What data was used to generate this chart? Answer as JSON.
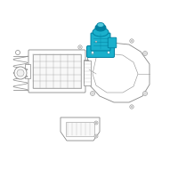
{
  "background_color": "#ffffff",
  "fig_width": 2.0,
  "fig_height": 2.0,
  "dpi": 100,
  "highlight_color": "#1ab0cc",
  "highlight_color2": "#0080a0",
  "highlight_color3": "#50c8dc",
  "outline_color": "#b0b0b0",
  "dark_outline": "#888888",
  "line_color": "#999999"
}
